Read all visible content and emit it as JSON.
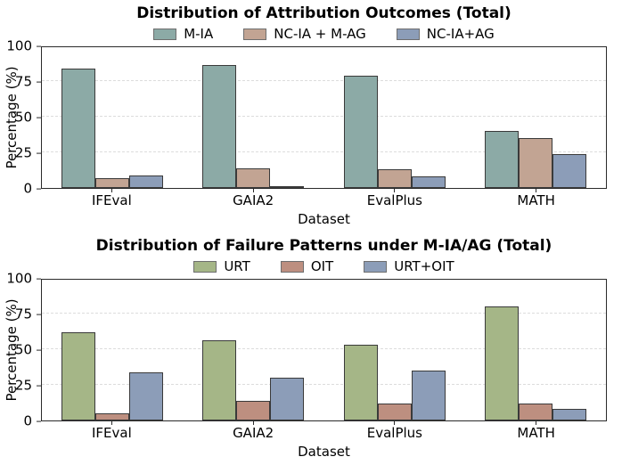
{
  "figure": {
    "background": "#ffffff"
  },
  "styles": {
    "spine_color": "#2a2a2a",
    "bar_edge_color": "#3a3a3a",
    "gridline_color": "#dcdcdc",
    "legend_swatch_border": "#6e6e6e"
  },
  "chart_data": [
    {
      "type": "bar",
      "title": "Distribution of Attribution Outcomes (Total)",
      "xlabel": "Dataset",
      "ylabel": "Percentage (%)",
      "ylim": [
        0,
        100
      ],
      "yticks": [
        0,
        25,
        50,
        75,
        100
      ],
      "grid": {
        "axis": "y",
        "style": "dashed",
        "lines_at": [
          25,
          50,
          75
        ]
      },
      "legend_position": "top-center",
      "categories": [
        "IFEval",
        "GAIA2",
        "EvalPlus",
        "MATH"
      ],
      "series": [
        {
          "name": "M-IA",
          "color": "#8caaa6",
          "values": [
            84,
            86,
            79,
            40
          ]
        },
        {
          "name": "NC-IA + M-AG",
          "color": "#c2a493",
          "values": [
            7,
            14,
            13,
            35
          ]
        },
        {
          "name": "NC-IA+AG",
          "color": "#8c9db8",
          "values": [
            9,
            0,
            8,
            24
          ]
        }
      ]
    },
    {
      "type": "bar",
      "title": "Distribution of Failure Patterns under M-IA/AG (Total)",
      "xlabel": "Dataset",
      "ylabel": "Percentage (%)",
      "ylim": [
        0,
        100
      ],
      "yticks": [
        0,
        25,
        50,
        75,
        100
      ],
      "grid": {
        "axis": "y",
        "style": "dashed",
        "lines_at": [
          25,
          50,
          75
        ]
      },
      "legend_position": "top-center",
      "categories": [
        "IFEval",
        "GAIA2",
        "EvalPlus",
        "MATH"
      ],
      "series": [
        {
          "name": "URT",
          "color": "#a5b687",
          "values": [
            62,
            56,
            53,
            80
          ]
        },
        {
          "name": "OIT",
          "color": "#bd8f80",
          "values": [
            5,
            14,
            12,
            12
          ]
        },
        {
          "name": "URT+OIT",
          "color": "#8c9db8",
          "values": [
            34,
            30,
            35,
            8
          ]
        }
      ]
    }
  ]
}
